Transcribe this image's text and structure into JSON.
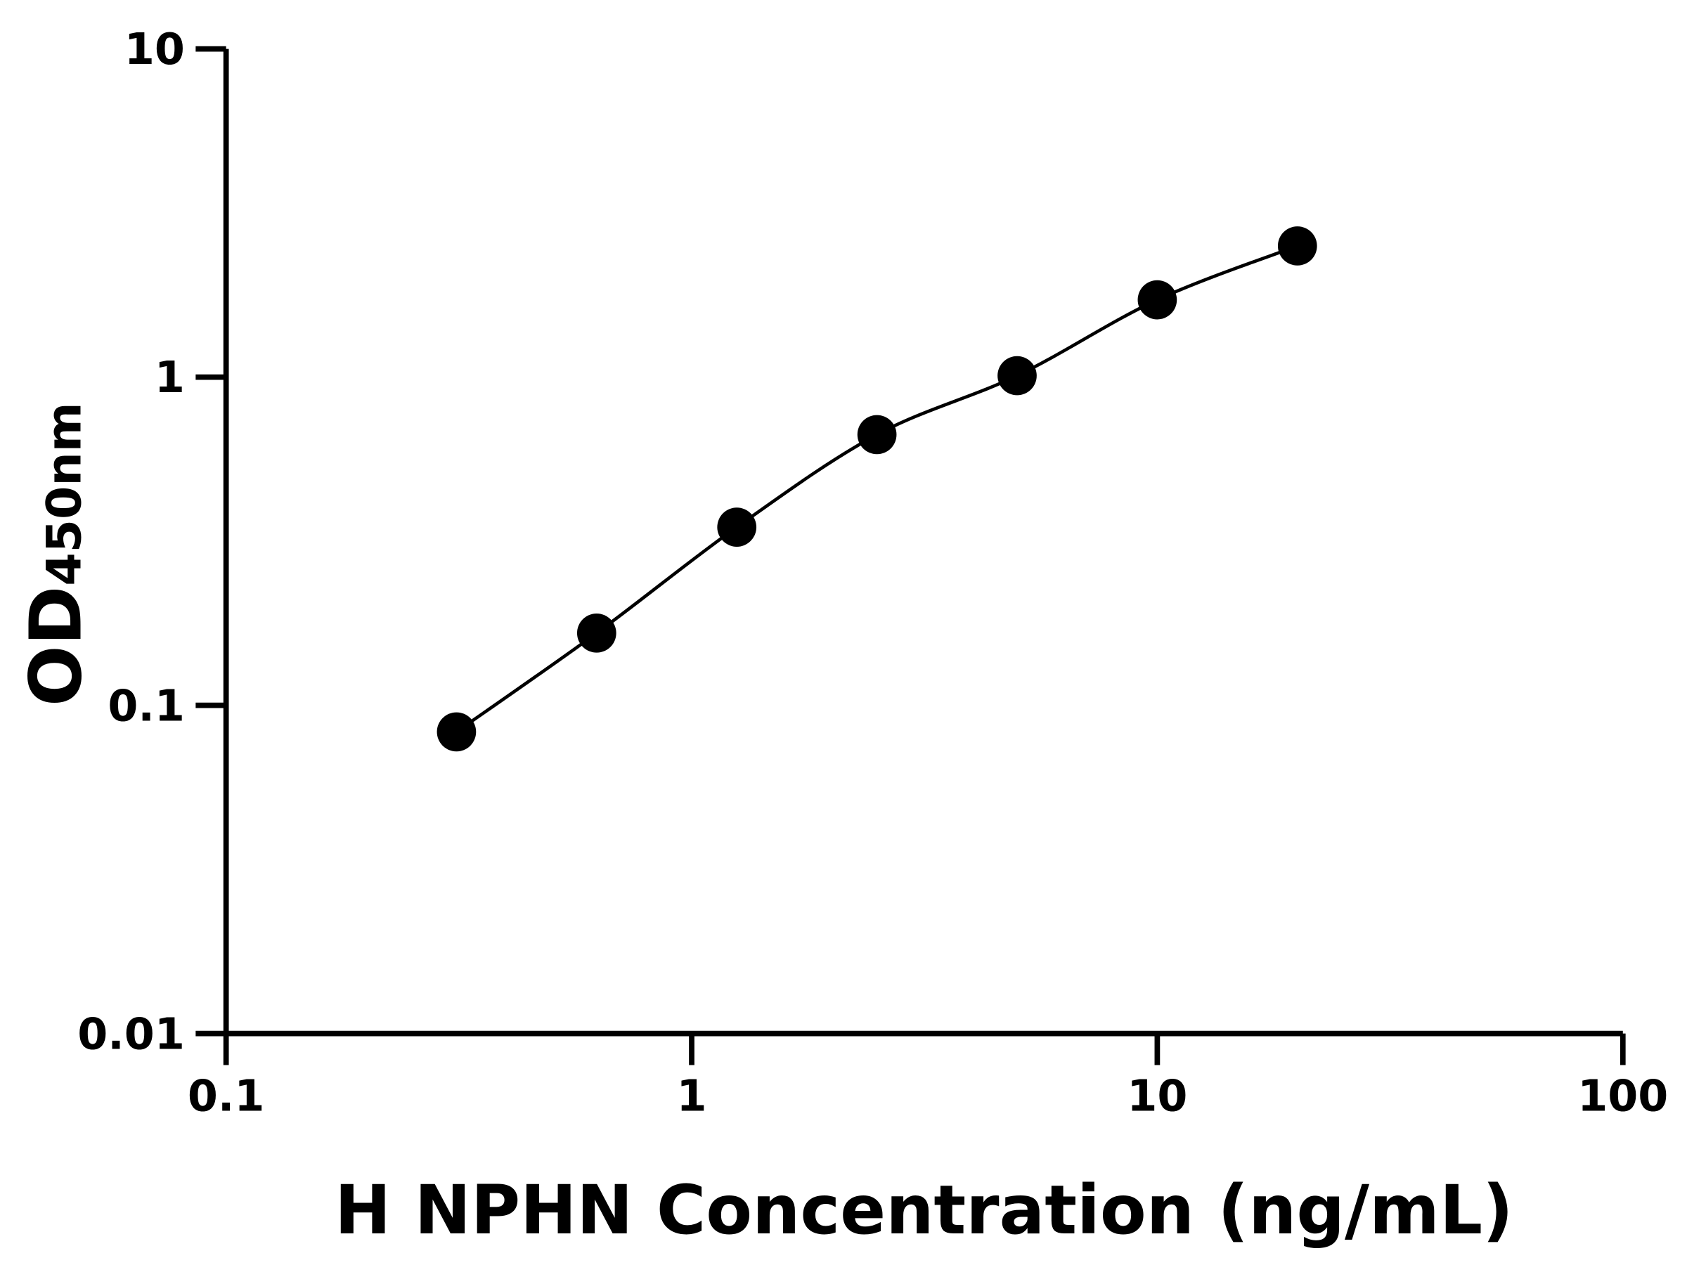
{
  "chart_data": {
    "type": "scatter",
    "title": "",
    "xlabel": "H NPHN Concentration (ng/mL)",
    "ylabel_main": "OD",
    "ylabel_sub": "450nm",
    "xscale": "log",
    "yscale": "log",
    "xlim": [
      0.1,
      100
    ],
    "ylim": [
      0.01,
      10
    ],
    "x_ticks": [
      0.1,
      1,
      10,
      100
    ],
    "x_tick_labels": [
      "0.1",
      "1",
      "10",
      "100"
    ],
    "y_ticks": [
      0.01,
      0.1,
      1,
      10
    ],
    "y_tick_labels": [
      "0.01",
      "0.1",
      "1",
      "10"
    ],
    "grid": false,
    "fit_curve": true,
    "marker_color": "#000000",
    "series": [
      {
        "x": [
          0.3125,
          0.625,
          1.25,
          2.5,
          5,
          10,
          20
        ],
        "y": [
          0.083,
          0.166,
          0.349,
          0.668,
          1.01,
          1.72,
          2.51
        ]
      }
    ]
  }
}
